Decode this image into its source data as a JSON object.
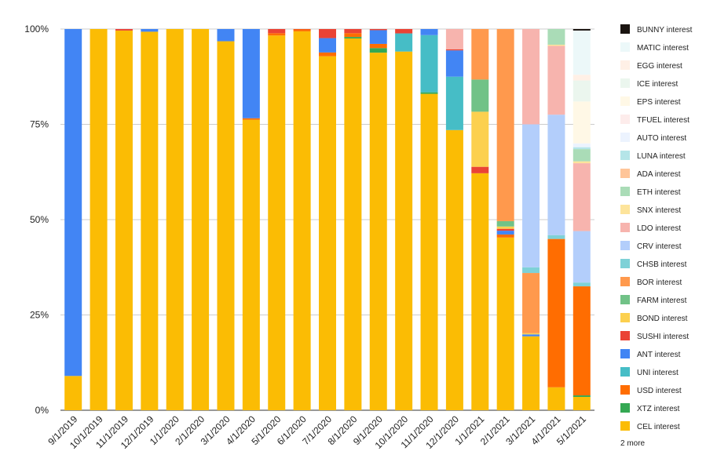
{
  "chart_data": {
    "type": "bar",
    "stacked": "percent",
    "title": "",
    "xlabel": "",
    "ylabel": "",
    "ylim": [
      0,
      100
    ],
    "yticks": [
      "0%",
      "25%",
      "50%",
      "75%",
      "100%"
    ],
    "grid": true,
    "legend_position": "right",
    "legend_more": "2 more",
    "categories": [
      "9/1/2019",
      "10/1/2019",
      "11/1/2019",
      "12/1/2019",
      "1/1/2020",
      "2/1/2020",
      "3/1/2020",
      "4/1/2020",
      "5/1/2020",
      "6/1/2020",
      "7/1/2020",
      "8/1/2020",
      "9/1/2020",
      "10/1/2020",
      "11/1/2020",
      "12/1/2020",
      "1/1/2021",
      "2/1/2021",
      "3/1/2021",
      "4/1/2021",
      "5/1/2021"
    ],
    "series": [
      {
        "name": "CEL interest",
        "color": "#fbbc04",
        "values": [
          9,
          100,
          99.6,
          99.3,
          100,
          100,
          96.8,
          76.5,
          98.3,
          99.4,
          93.6,
          98.5,
          93.8,
          98.8,
          83,
          73.5,
          51.6,
          45.3,
          19.4,
          6,
          3.5
        ]
      },
      {
        "name": "XTZ interest",
        "color": "#34a853",
        "values": [
          0,
          0,
          0,
          0,
          0,
          0,
          0,
          0,
          0,
          0,
          0,
          0.4,
          1.2,
          0,
          0.4,
          0,
          0,
          0,
          0,
          0,
          0.4
        ]
      },
      {
        "name": "USD interest",
        "color": "#ff6d01",
        "values": [
          0,
          0,
          0,
          0,
          0,
          0,
          0,
          0.4,
          0.6,
          0.5,
          1,
          1,
          1.1,
          0,
          0,
          0,
          0,
          0.8,
          0,
          38.8,
          28.6
        ]
      },
      {
        "name": "UNI interest",
        "color": "#46bdc6",
        "values": [
          0,
          0,
          0,
          0,
          0,
          0,
          0,
          0,
          0,
          0,
          0,
          0,
          0,
          5,
          15,
          14,
          0,
          0,
          0,
          0,
          0
        ]
      },
      {
        "name": "ANT interest",
        "color": "#4285f4",
        "values": [
          91,
          0,
          0,
          0.7,
          0,
          0,
          3.2,
          23.5,
          0,
          0,
          3.8,
          0,
          3.6,
          0,
          1.6,
          6.9,
          0,
          1,
          0.5,
          0,
          0
        ]
      },
      {
        "name": "SUSHI interest",
        "color": "#ea4335",
        "values": [
          0,
          0,
          0.4,
          0,
          0,
          0,
          0,
          0,
          1.1,
          0.1,
          2.4,
          1.1,
          0.3,
          1.2,
          0,
          0.3,
          1.4,
          0.5,
          0,
          0,
          0
        ]
      },
      {
        "name": "BOND interest",
        "color": "#fcd04f",
        "values": [
          0,
          0,
          0,
          0,
          0,
          0,
          0,
          0,
          0,
          0,
          0,
          0,
          0,
          0,
          0,
          0,
          12,
          0.6,
          0.3,
          0,
          0
        ]
      },
      {
        "name": "FARM interest",
        "color": "#71c287",
        "values": [
          0,
          0,
          0,
          0,
          0,
          0,
          0,
          0,
          0,
          0,
          0,
          0,
          0,
          0,
          0,
          0,
          7,
          1.4,
          0,
          0,
          0
        ]
      },
      {
        "name": "BOR interest",
        "color": "#ff994d",
        "values": [
          0,
          0,
          0,
          0,
          0,
          0,
          0,
          0,
          0,
          0,
          0,
          0,
          0,
          0,
          0,
          0,
          11,
          50.4,
          15.8,
          0,
          0
        ]
      },
      {
        "name": "CHSB interest",
        "color": "#7ed1d7",
        "values": [
          0,
          0,
          0,
          0,
          0,
          0,
          0,
          0,
          0,
          0,
          0,
          0,
          0,
          0,
          0,
          0,
          0,
          0,
          1.5,
          1,
          1
        ]
      },
      {
        "name": "CRV interest",
        "color": "#b3cefb",
        "values": [
          0,
          0,
          0,
          0,
          0,
          0,
          0,
          0,
          0,
          0,
          0,
          0,
          0,
          0,
          0,
          0,
          0,
          0,
          37.5,
          31.5,
          13.5
        ]
      },
      {
        "name": "LDO interest",
        "color": "#f7b4ae",
        "values": [
          0,
          0,
          0,
          0,
          0,
          0,
          0,
          0,
          0,
          0,
          0,
          0,
          0,
          0,
          0,
          5.3,
          0,
          0,
          25,
          18,
          17.8
        ]
      },
      {
        "name": "SNX interest",
        "color": "#fde49b",
        "values": [
          0,
          0,
          0,
          0,
          0,
          0,
          0,
          0,
          0,
          0,
          0,
          0,
          0,
          0,
          0,
          0,
          0,
          0,
          0,
          0.3,
          0.5
        ]
      },
      {
        "name": "ETH interest",
        "color": "#aadcb7",
        "values": [
          0,
          0,
          0,
          0,
          0,
          0,
          0,
          0,
          0,
          0,
          0,
          0,
          0,
          0,
          0,
          0,
          0,
          0,
          0,
          4.1,
          3.2
        ]
      },
      {
        "name": "ADA interest",
        "color": "#ffc599",
        "values": [
          0,
          0,
          0,
          0,
          0,
          0,
          0,
          0,
          0,
          0,
          0,
          0,
          0,
          0,
          0,
          0,
          0,
          0,
          0,
          0,
          0
        ]
      },
      {
        "name": "LUNA interest",
        "color": "#b5e5e8",
        "values": [
          0,
          0,
          0,
          0,
          0,
          0,
          0,
          0,
          0,
          0,
          0,
          0,
          0,
          0,
          0,
          0,
          0,
          0,
          0,
          0,
          0.5
        ]
      },
      {
        "name": "AUTO interest",
        "color": "#ecf3fe",
        "values": [
          0,
          0,
          0,
          0,
          0,
          0,
          0,
          0,
          0,
          0,
          0,
          0,
          0,
          0,
          0,
          0,
          0,
          0,
          0,
          0,
          1
        ]
      },
      {
        "name": "TFUEL interest",
        "color": "#fdeceb",
        "values": [
          0,
          0,
          0,
          0,
          0,
          0,
          0,
          0,
          0,
          0,
          0,
          0,
          0,
          0,
          0,
          0,
          0,
          0,
          0,
          0,
          0
        ]
      },
      {
        "name": "EPS interest",
        "color": "#fff8e6",
        "values": [
          0,
          0,
          0,
          0,
          0,
          0,
          0,
          0,
          0,
          0,
          0,
          0,
          0,
          0,
          0,
          0,
          0,
          0,
          0,
          0,
          11
        ]
      },
      {
        "name": "ICE interest",
        "color": "#ebf6ee",
        "values": [
          0,
          0,
          0,
          0,
          0,
          0,
          0,
          0,
          0,
          0,
          0,
          0,
          0,
          0,
          0,
          0,
          0,
          0,
          0,
          0,
          5.5
        ]
      },
      {
        "name": "EGG interest",
        "color": "#fff0e6",
        "values": [
          0,
          0,
          0,
          0,
          0,
          0,
          0,
          0,
          0,
          0,
          0,
          0,
          0,
          0,
          0,
          0,
          0,
          0,
          0,
          0,
          1.5
        ]
      },
      {
        "name": "MATIC interest",
        "color": "#ecf8f9",
        "values": [
          0,
          0,
          0,
          0,
          0,
          0,
          0,
          0,
          0,
          0,
          0,
          0,
          0,
          0,
          0,
          0,
          0,
          0,
          0,
          0,
          11.6
        ]
      },
      {
        "name": "BUNNY interest",
        "color": "#1a1410",
        "values": [
          0,
          0,
          0,
          0,
          0,
          0,
          0,
          0,
          0,
          0,
          0,
          0,
          0,
          0,
          0,
          0,
          0,
          0,
          0,
          0,
          0.4
        ]
      }
    ]
  }
}
